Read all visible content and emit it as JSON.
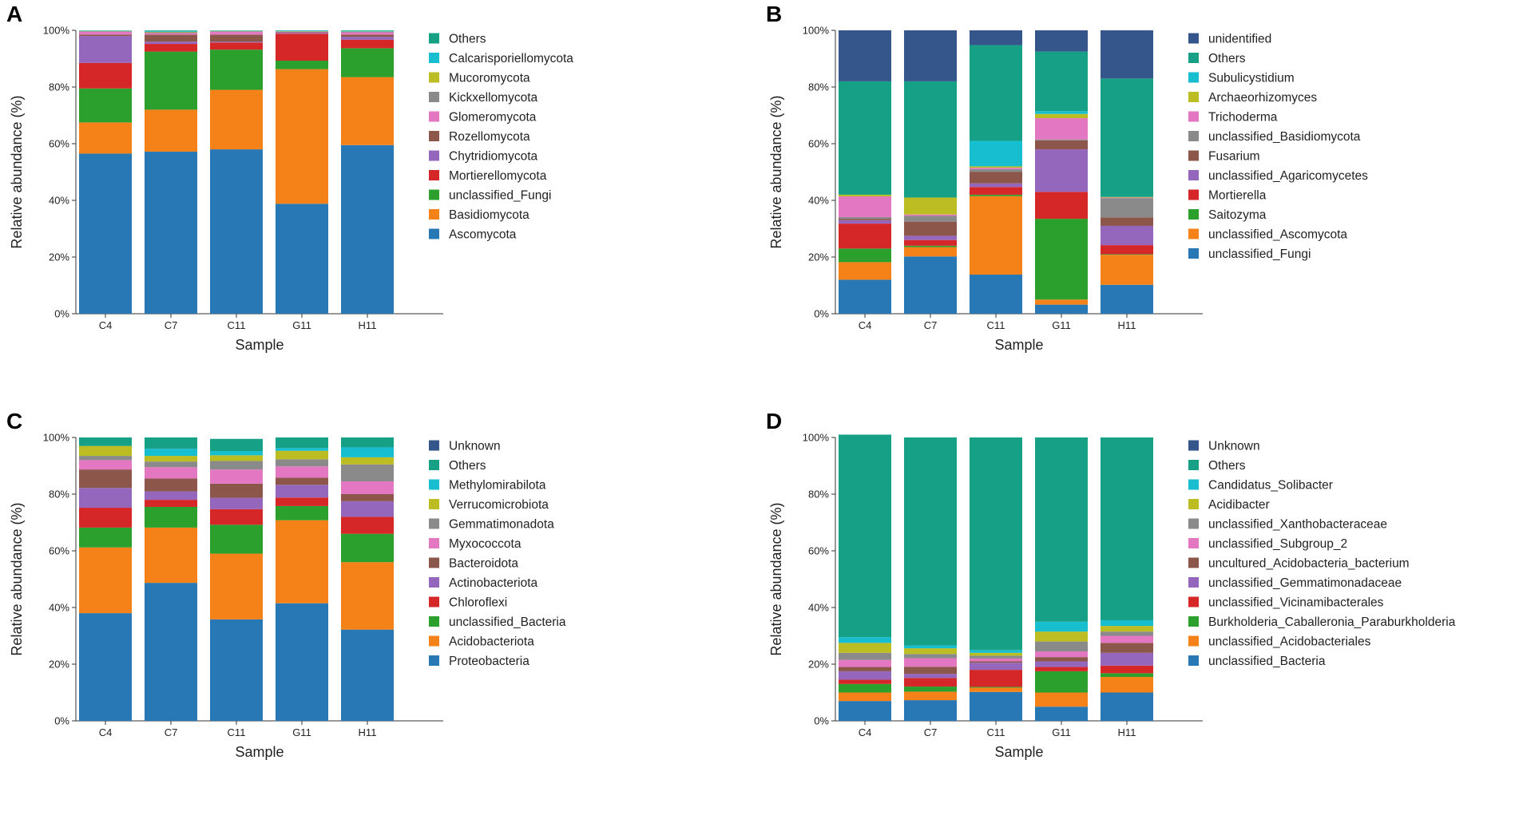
{
  "chart_data": [
    {
      "panel": "A",
      "type": "bar",
      "stacked": true,
      "xlabel": "Sample",
      "ylabel": "Relative abundance (%)",
      "yticks": [
        "0%",
        "20%",
        "40%",
        "60%",
        "80%",
        "100%"
      ],
      "ylim": [
        0,
        100
      ],
      "categories": [
        "C4",
        "C7",
        "C11",
        "G11",
        "H11"
      ],
      "series": [
        {
          "name": "Ascomycota",
          "color": "#2878b5",
          "values": [
            56.5,
            57.2,
            58.0,
            38.8,
            59.5
          ]
        },
        {
          "name": "Basidiomycota",
          "color": "#f58218",
          "values": [
            11.0,
            14.8,
            21.0,
            47.5,
            24.0
          ]
        },
        {
          "name": "unclassified_Fungi",
          "color": "#2ca02c",
          "values": [
            12.0,
            20.5,
            14.2,
            3.0,
            10.2
          ]
        },
        {
          "name": "Mortierellomycota",
          "color": "#d62728",
          "values": [
            9.0,
            2.7,
            2.5,
            9.5,
            3.0
          ]
        },
        {
          "name": "Chytridiomycota",
          "color": "#9467bd",
          "values": [
            9.5,
            0.8,
            0.3,
            0.3,
            1.0
          ]
        },
        {
          "name": "Rozellomycota",
          "color": "#8c564b",
          "values": [
            0.5,
            2.5,
            2.5,
            0.2,
            0.8
          ]
        },
        {
          "name": "Glomeromycota",
          "color": "#e377c2",
          "values": [
            1.0,
            0.5,
            1.0,
            0.2,
            0.8
          ]
        },
        {
          "name": "Kickxellomycota",
          "color": "#8a8a8a",
          "values": [
            0.2,
            0.3,
            0.2,
            0.1,
            0.2
          ]
        },
        {
          "name": "Mucoromycota",
          "color": "#bcbd22",
          "values": [
            0.1,
            0.2,
            0.1,
            0.1,
            0.1
          ]
        },
        {
          "name": "Calcarisporiellomycota",
          "color": "#17becf",
          "values": [
            0.1,
            0.3,
            0.1,
            0.2,
            0.2
          ]
        },
        {
          "name": "Others",
          "color": "#16a085",
          "values": [
            0.1,
            0.2,
            0.1,
            0.1,
            0.2
          ]
        }
      ]
    },
    {
      "panel": "B",
      "type": "bar",
      "stacked": true,
      "xlabel": "Sample",
      "ylabel": "Relative abundance (%)",
      "yticks": [
        "0%",
        "20%",
        "40%",
        "60%",
        "80%",
        "100%"
      ],
      "ylim": [
        0,
        100
      ],
      "categories": [
        "C4",
        "C7",
        "C11",
        "G11",
        "H11"
      ],
      "series": [
        {
          "name": "unclassified_Fungi",
          "color": "#2878b5",
          "values": [
            12.0,
            20.2,
            13.8,
            3.2,
            10.2
          ]
        },
        {
          "name": "unclassified_Ascomycota",
          "color": "#f58218",
          "values": [
            6.2,
            3.3,
            27.7,
            1.8,
            10.6
          ]
        },
        {
          "name": "Saitozyma",
          "color": "#2ca02c",
          "values": [
            4.8,
            0.5,
            0.5,
            28.5,
            0.2
          ]
        },
        {
          "name": "Mortierella",
          "color": "#d62728",
          "values": [
            8.8,
            2.0,
            2.7,
            9.5,
            3.2
          ]
        },
        {
          "name": "unclassified_Agaricomycetes",
          "color": "#9467bd",
          "values": [
            1.2,
            1.5,
            1.3,
            15.0,
            6.8
          ]
        },
        {
          "name": "Fusarium",
          "color": "#8c564b",
          "values": [
            0.5,
            5.0,
            4.0,
            3.2,
            3.0
          ]
        },
        {
          "name": "unclassified_Basidiomycota",
          "color": "#8a8a8a",
          "values": [
            0.6,
            2.0,
            1.0,
            0.3,
            6.8
          ]
        },
        {
          "name": "Trichoderma",
          "color": "#e377c2",
          "values": [
            7.3,
            0.5,
            0.5,
            7.5,
            0.2
          ]
        },
        {
          "name": "Archaeorhizomyces",
          "color": "#bcbd22",
          "values": [
            0.6,
            6.0,
            0.5,
            1.5,
            0.2
          ]
        },
        {
          "name": "Subulicystidium",
          "color": "#17becf",
          "values": [
            0.0,
            0.0,
            9.0,
            1.0,
            0.0
          ]
        },
        {
          "name": "Others",
          "color": "#16a085",
          "values": [
            40.0,
            41.0,
            33.8,
            21.0,
            41.8
          ]
        },
        {
          "name": "unidentified",
          "color": "#34568b",
          "values": [
            18.0,
            18.0,
            5.2,
            7.5,
            17.0
          ]
        }
      ]
    },
    {
      "panel": "C",
      "type": "bar",
      "stacked": true,
      "xlabel": "Sample",
      "ylabel": "Relative abundance (%)",
      "yticks": [
        "0%",
        "20%",
        "40%",
        "60%",
        "80%",
        "100%"
      ],
      "ylim": [
        0,
        100
      ],
      "categories": [
        "C4",
        "C7",
        "C11",
        "G11",
        "H11"
      ],
      "series": [
        {
          "name": "Proteobacteria",
          "color": "#2878b5",
          "values": [
            38.0,
            48.7,
            35.8,
            41.5,
            32.2
          ]
        },
        {
          "name": "Acidobacteriota",
          "color": "#f58218",
          "values": [
            23.2,
            19.5,
            23.2,
            29.3,
            23.8
          ]
        },
        {
          "name": "unclassified_Bacteria",
          "color": "#2ca02c",
          "values": [
            7.0,
            7.3,
            10.2,
            5.0,
            10.0
          ]
        },
        {
          "name": "Chloroflexi",
          "color": "#d62728",
          "values": [
            7.0,
            2.5,
            5.5,
            3.0,
            6.0
          ]
        },
        {
          "name": "Actinobacteriota",
          "color": "#9467bd",
          "values": [
            7.0,
            3.0,
            4.0,
            4.5,
            5.5
          ]
        },
        {
          "name": "Bacteroidota",
          "color": "#8c564b",
          "values": [
            6.5,
            4.5,
            5.0,
            2.5,
            2.5
          ]
        },
        {
          "name": "Myxococcota",
          "color": "#e377c2",
          "values": [
            3.3,
            4.0,
            5.0,
            4.0,
            4.5
          ]
        },
        {
          "name": "Gemmatimonadota",
          "color": "#8a8a8a",
          "values": [
            1.5,
            2.0,
            3.0,
            2.5,
            6.0
          ]
        },
        {
          "name": "Verrucomicrobiota",
          "color": "#bcbd22",
          "values": [
            3.5,
            2.0,
            2.0,
            3.0,
            2.5
          ]
        },
        {
          "name": "Methylomirabilota",
          "color": "#17becf",
          "values": [
            0.0,
            2.5,
            1.5,
            1.0,
            3.5
          ]
        },
        {
          "name": "Others",
          "color": "#16a085",
          "values": [
            3.0,
            4.0,
            4.3,
            3.7,
            3.5
          ]
        },
        {
          "name": "Unknown",
          "color": "#34568b",
          "values": [
            0.0,
            0.0,
            0.0,
            0.0,
            0.0
          ]
        }
      ]
    },
    {
      "panel": "D",
      "type": "bar",
      "stacked": true,
      "xlabel": "Sample",
      "ylabel": "Relative abundance (%)",
      "yticks": [
        "0%",
        "20%",
        "40%",
        "60%",
        "80%",
        "100%"
      ],
      "ylim": [
        0,
        100
      ],
      "categories": [
        "C4",
        "C7",
        "C11",
        "G11",
        "H11"
      ],
      "series": [
        {
          "name": "unclassified_Bacteria",
          "color": "#2878b5",
          "values": [
            7.0,
            7.3,
            10.2,
            5.0,
            10.0
          ]
        },
        {
          "name": "unclassified_Acidobacteriales",
          "color": "#f58218",
          "values": [
            3.0,
            3.0,
            1.5,
            5.0,
            5.5
          ]
        },
        {
          "name": "Burkholderia_Caballeronia_Paraburkholderia",
          "color": "#2ca02c",
          "values": [
            3.0,
            1.8,
            0.3,
            7.5,
            1.3
          ]
        },
        {
          "name": "unclassified_Vicinamibacterales",
          "color": "#d62728",
          "values": [
            1.5,
            3.0,
            6.0,
            1.5,
            2.7
          ]
        },
        {
          "name": "unclassified_Gemmatimonadaceae",
          "color": "#9467bd",
          "values": [
            3.0,
            1.5,
            2.5,
            2.0,
            4.5
          ]
        },
        {
          "name": "uncultured_Acidobacteria_bacterium",
          "color": "#8c564b",
          "values": [
            1.5,
            2.5,
            0.5,
            1.5,
            3.5
          ]
        },
        {
          "name": "unclassified_Subgroup_2",
          "color": "#e377c2",
          "values": [
            2.5,
            3.0,
            1.0,
            2.0,
            2.5
          ]
        },
        {
          "name": "unclassified_Xanthobacteraceae",
          "color": "#8a8a8a",
          "values": [
            2.5,
            1.5,
            1.0,
            3.5,
            1.5
          ]
        },
        {
          "name": "Acidibacter",
          "color": "#bcbd22",
          "values": [
            3.5,
            2.0,
            1.0,
            3.5,
            2.0
          ]
        },
        {
          "name": "Candidatus_Solibacter",
          "color": "#17becf",
          "values": [
            2.0,
            1.0,
            1.0,
            3.5,
            2.0
          ]
        },
        {
          "name": "Others",
          "color": "#16a085",
          "values": [
            71.5,
            73.4,
            75.0,
            65.0,
            64.5
          ]
        },
        {
          "name": "Unknown",
          "color": "#34568b",
          "values": [
            0.0,
            0.0,
            0.0,
            0.0,
            0.0
          ]
        }
      ]
    }
  ]
}
